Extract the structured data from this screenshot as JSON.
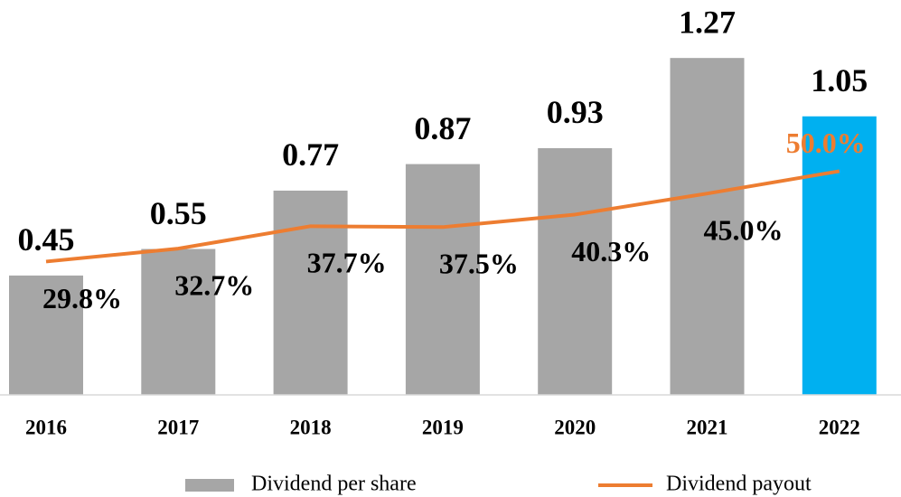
{
  "chart_data": {
    "type": "bar_line",
    "categories": [
      "2016",
      "2017",
      "2018",
      "2019",
      "2020",
      "2021",
      "2022"
    ],
    "series": [
      {
        "name": "Dividend per share",
        "type": "bar",
        "color": "#a6a6a6",
        "colors": [
          "#a6a6a6",
          "#a6a6a6",
          "#a6a6a6",
          "#a6a6a6",
          "#a6a6a6",
          "#a6a6a6",
          "#00b0f0"
        ],
        "values": [
          0.45,
          0.55,
          0.77,
          0.87,
          0.93,
          1.27,
          1.05
        ]
      },
      {
        "name": "Dividend payout",
        "type": "line",
        "axis": "y2",
        "color": "#ed7d31",
        "values": [
          29.8,
          32.7,
          37.7,
          37.5,
          40.3,
          45.0,
          50.0
        ],
        "value_labels": [
          "29.8%",
          "32.7%",
          "37.7%",
          "37.5%",
          "40.3%",
          "45.0%",
          "50.0%"
        ]
      }
    ],
    "ylim": [
      0,
      1.4
    ],
    "y2lim": [
      0,
      83
    ],
    "legend": "bottom"
  }
}
